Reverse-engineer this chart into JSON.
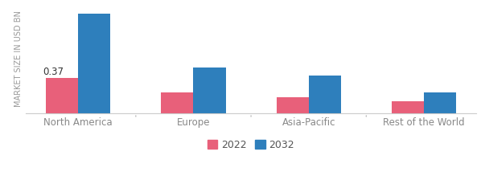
{
  "categories": [
    "North America",
    "Europe",
    "Asia-Pacific",
    "Rest of the World"
  ],
  "values_2022": [
    0.37,
    0.22,
    0.17,
    0.13
  ],
  "values_2032": [
    1.05,
    0.48,
    0.4,
    0.22
  ],
  "color_2022": "#e8607a",
  "color_2032": "#2e7fbc",
  "bar_annotation": "0.37",
  "ylabel": "MARKET SIZE IN USD BN",
  "legend_2022": "2022",
  "legend_2032": "2032",
  "bar_width": 0.28,
  "ylim": [
    0,
    1.15
  ],
  "background_color": "#ffffff",
  "ylabel_fontsize": 7.0,
  "tick_fontsize": 8.5,
  "legend_fontsize": 9.0,
  "annotation_fontsize": 8.5
}
